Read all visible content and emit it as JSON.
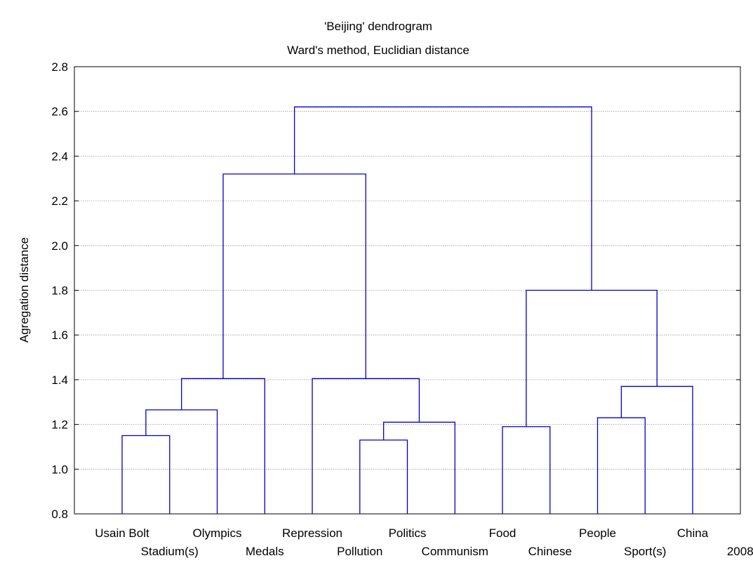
{
  "chart_data": {
    "type": "dendrogram",
    "title": "'Beijing' dendrogram",
    "subtitle": "Ward's method, Euclidian distance",
    "xlabel": "",
    "ylabel": "Agregation distance",
    "ylim": [
      0.8,
      2.8
    ],
    "yticks": [
      "0.8",
      "1.0",
      "1.2",
      "1.4",
      "1.6",
      "1.8",
      "2.0",
      "2.2",
      "2.4",
      "2.6",
      "2.8"
    ],
    "grid": true,
    "line_color": "#0000cc",
    "leaves": [
      "Usain Bolt",
      "Stadium(s)",
      "Olympics",
      "Medals",
      "Repression",
      "Pollution",
      "Politics",
      "Communism",
      "Food",
      "Chinese",
      "People",
      "Sport(s)",
      "China",
      "2008"
    ],
    "merges": [
      {
        "left": "Usain Bolt",
        "right": "Stadium(s)",
        "height": 1.15
      },
      {
        "left": "Usain Bolt + Stadium(s)",
        "right": "Olympics",
        "height": 1.265
      },
      {
        "left": "Usain Bolt + Stadium(s) + Olympics",
        "right": "Medals",
        "height": 1.405
      },
      {
        "left": "Pollution",
        "right": "Politics",
        "height": 1.13
      },
      {
        "left": "Pollution + Politics",
        "right": "Communism",
        "height": 1.21
      },
      {
        "left": "Repression",
        "right": "Pollution + Politics + Communism",
        "height": 1.405
      },
      {
        "left": "Usain Bolt + Stadium(s) + Olympics + Medals",
        "right": "Repression + Pollution + Politics + Communism",
        "height": 2.32
      },
      {
        "left": "Food",
        "right": "Chinese",
        "height": 1.19
      },
      {
        "left": "People",
        "right": "Sport(s)",
        "height": 1.23
      },
      {
        "left": "People + Sport(s)",
        "right": "China",
        "height": 1.37
      },
      {
        "left": "Food + Chinese",
        "right": "People + Sport(s) + China",
        "height": 1.8
      },
      {
        "left": "Usain Bolt + Stadium(s) + Olympics + Medals + Repression + Pollution + Politics + Communism",
        "right": "Food + Chinese + People + Sport(s) + China",
        "height": 2.62
      }
    ],
    "leaf_base": 0.8
  }
}
